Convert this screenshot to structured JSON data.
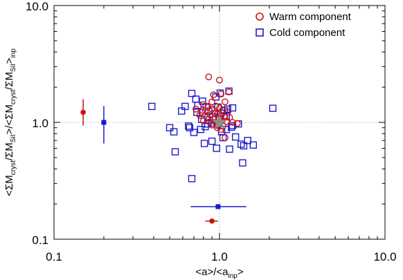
{
  "chart_data": {
    "type": "scatter",
    "xscale": "log",
    "yscale": "log",
    "xlim": [
      0.1,
      10.0
    ],
    "ylim": [
      0.1,
      10.0
    ],
    "xticks": [
      "0.1",
      "1.0",
      "10.0"
    ],
    "yticks": [
      "0.1",
      "1.0",
      "10.0"
    ],
    "xlabel": {
      "main": "<a>/<a",
      "sub": "inp",
      "tail": ">"
    },
    "ylabel": {
      "p1": "<ΣM",
      "s1": "cryst",
      "p2": "/ΣM",
      "s2": "SiI",
      "p3": ">/<ΣM",
      "s3": "cryst",
      "p4": "/ΣM",
      "s4": "SiI",
      "p5": ">",
      "s5": "inp"
    },
    "grid": "dotted reference lines at x=1 and y=1",
    "legend_position": "top-right",
    "series": [
      {
        "name": "Warm component",
        "marker": "open-circle",
        "color": "#cc1111",
        "points": [
          [
            0.86,
            2.45
          ],
          [
            1.0,
            2.3
          ],
          [
            0.92,
            1.72
          ],
          [
            1.02,
            1.75
          ],
          [
            1.14,
            1.82
          ],
          [
            1.08,
            1.5
          ],
          [
            0.9,
            1.5
          ],
          [
            0.8,
            1.42
          ],
          [
            0.95,
            1.38
          ],
          [
            0.85,
            1.35
          ],
          [
            0.9,
            1.3
          ],
          [
            1.0,
            1.33
          ],
          [
            1.05,
            1.28
          ],
          [
            0.72,
            1.3
          ],
          [
            0.82,
            1.26
          ],
          [
            0.78,
            1.22
          ],
          [
            0.93,
            1.2
          ],
          [
            1.12,
            1.22
          ],
          [
            0.88,
            1.16
          ],
          [
            0.97,
            1.18
          ],
          [
            1.02,
            1.14
          ],
          [
            1.08,
            1.1
          ],
          [
            0.84,
            1.1
          ],
          [
            0.92,
            1.06
          ],
          [
            1.0,
            1.08
          ],
          [
            1.04,
            1.04
          ],
          [
            1.1,
            1.02
          ],
          [
            0.95,
            1.0
          ],
          [
            0.99,
            0.96
          ],
          [
            1.05,
            0.93
          ],
          [
            0.9,
            0.95
          ],
          [
            0.97,
            0.9
          ],
          [
            1.02,
            0.87
          ],
          [
            1.28,
            0.98
          ],
          [
            1.08,
            0.74
          ],
          [
            0.8,
            1.03
          ],
          [
            0.87,
            1.01
          ],
          [
            1.15,
            1.1
          ],
          [
            0.76,
            1.15
          ],
          [
            1.2,
            1.0
          ]
        ],
        "summary": {
          "x": 0.15,
          "y": 1.22,
          "ylow": 0.94,
          "yhigh": 1.58
        },
        "summary_bottom": {
          "x": 0.9,
          "y": 0.143,
          "xlow": 0.82,
          "xhigh": 0.98
        }
      },
      {
        "name": "Cold component",
        "marker": "open-square",
        "color": "#1a1acc",
        "points": [
          [
            0.39,
            1.37
          ],
          [
            0.59,
            1.25
          ],
          [
            0.62,
            1.37
          ],
          [
            0.68,
            1.77
          ],
          [
            0.72,
            1.58
          ],
          [
            0.74,
            1.4
          ],
          [
            0.79,
            1.52
          ],
          [
            0.83,
            1.36
          ],
          [
            0.86,
            1.25
          ],
          [
            0.98,
            1.35
          ],
          [
            1.02,
            1.2
          ],
          [
            1.07,
            1.26
          ],
          [
            1.12,
            1.3
          ],
          [
            1.2,
            1.33
          ],
          [
            1.14,
            1.85
          ],
          [
            1.01,
            1.78
          ],
          [
            0.95,
            1.65
          ],
          [
            1.0,
            1.08
          ],
          [
            0.91,
            1.12
          ],
          [
            0.87,
            1.05
          ],
          [
            0.78,
            1.06
          ],
          [
            0.73,
            1.22
          ],
          [
            0.65,
            0.93
          ],
          [
            0.66,
            0.9
          ],
          [
            0.5,
            0.9
          ],
          [
            0.53,
            0.83
          ],
          [
            0.7,
            0.82
          ],
          [
            0.77,
            0.87
          ],
          [
            0.82,
            0.92
          ],
          [
            0.85,
            0.97
          ],
          [
            0.9,
            0.99
          ],
          [
            0.97,
            0.95
          ],
          [
            1.03,
            0.83
          ],
          [
            1.05,
            0.74
          ],
          [
            1.1,
            0.87
          ],
          [
            1.18,
            0.91
          ],
          [
            1.25,
            0.75
          ],
          [
            1.35,
            0.65
          ],
          [
            1.4,
            0.63
          ],
          [
            1.48,
            0.7
          ],
          [
            1.6,
            0.64
          ],
          [
            1.3,
            0.97
          ],
          [
            1.1,
            1.13
          ],
          [
            2.1,
            1.32
          ],
          [
            0.9,
            0.69
          ],
          [
            0.96,
            0.6
          ],
          [
            0.81,
            0.66
          ],
          [
            1.15,
            0.59
          ],
          [
            0.54,
            0.56
          ],
          [
            1.38,
            0.45
          ],
          [
            0.68,
            0.33
          ],
          [
            1.2,
            0.94
          ]
        ],
        "summary": {
          "x": 0.2,
          "y": 1.0,
          "ylow": 0.66,
          "yhigh": 1.38
        },
        "summary_bottom": {
          "x": 0.98,
          "y": 0.19,
          "xlow": 0.67,
          "xhigh": 1.45
        }
      }
    ],
    "reference_point": {
      "x": 1.0,
      "y": 1.0,
      "marker": "filled-star",
      "color": "#8c8c8c"
    }
  }
}
